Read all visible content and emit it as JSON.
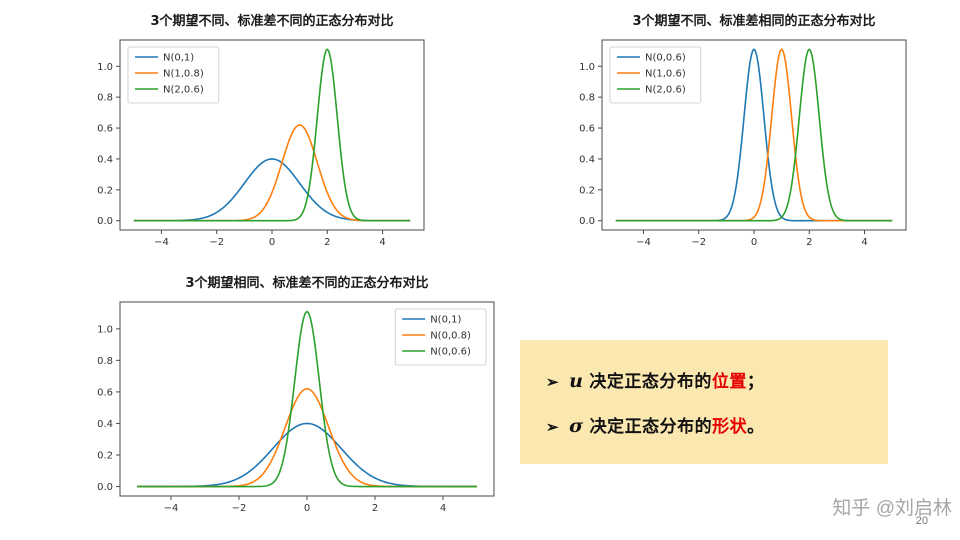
{
  "chart_data": [
    {
      "type": "line",
      "title": "3个期望不同、标准差不同的正态分布对比",
      "xlim": [
        -5.5,
        5.5
      ],
      "ylim": [
        -0.06,
        1.17
      ],
      "curve_range": [
        -5,
        5
      ],
      "grid": false,
      "x_ticks": [
        -4,
        -2,
        0,
        2,
        4
      ],
      "x_tick_labels": [
        "−4",
        "−2",
        "0",
        "2",
        "4"
      ],
      "y_ticks": [
        0,
        0.2,
        0.4,
        0.6,
        0.8,
        1.0
      ],
      "y_tick_labels": [
        "0.0",
        "0.2",
        "0.4",
        "0.6",
        "0.8",
        "1.0"
      ],
      "legend_position": "upper-left",
      "series": [
        {
          "name": "N(0,1)",
          "color": "#1f77b4",
          "mu": 0,
          "sigma": 1.0,
          "peak": 0.4
        },
        {
          "name": "N(1,0.8)",
          "color": "#ff7f0e",
          "mu": 1,
          "sigma": 0.64,
          "peak": 0.62
        },
        {
          "name": "N(2,0.6)",
          "color": "#2ca02c",
          "mu": 2,
          "sigma": 0.36,
          "peak": 1.11
        }
      ]
    },
    {
      "type": "line",
      "title": "3个期望不同、标准差相同的正态分布对比",
      "xlim": [
        -5.5,
        5.5
      ],
      "ylim": [
        -0.06,
        1.17
      ],
      "curve_range": [
        -5,
        5
      ],
      "grid": false,
      "x_ticks": [
        -4,
        -2,
        0,
        2,
        4
      ],
      "x_tick_labels": [
        "−4",
        "−2",
        "0",
        "2",
        "4"
      ],
      "y_ticks": [
        0,
        0.2,
        0.4,
        0.6,
        0.8,
        1.0
      ],
      "y_tick_labels": [
        "0.0",
        "0.2",
        "0.4",
        "0.6",
        "0.8",
        "1.0"
      ],
      "legend_position": "upper-left",
      "series": [
        {
          "name": "N(0,0.6)",
          "color": "#1f77b4",
          "mu": 0,
          "sigma": 0.36,
          "peak": 1.11
        },
        {
          "name": "N(1,0.6)",
          "color": "#ff7f0e",
          "mu": 1,
          "sigma": 0.36,
          "peak": 1.11
        },
        {
          "name": "N(2,0.6)",
          "color": "#2ca02c",
          "mu": 2,
          "sigma": 0.36,
          "peak": 1.11
        }
      ]
    },
    {
      "type": "line",
      "title": "3个期望相同、标准差不同的正态分布对比",
      "xlim": [
        -5.5,
        5.5
      ],
      "ylim": [
        -0.06,
        1.17
      ],
      "curve_range": [
        -5,
        5
      ],
      "grid": false,
      "x_ticks": [
        -4,
        -2,
        0,
        2,
        4
      ],
      "x_tick_labels": [
        "−4",
        "−2",
        "0",
        "2",
        "4"
      ],
      "y_ticks": [
        0,
        0.2,
        0.4,
        0.6,
        0.8,
        1.0
      ],
      "y_tick_labels": [
        "0.0",
        "0.2",
        "0.4",
        "0.6",
        "0.8",
        "1.0"
      ],
      "legend_position": "upper-right",
      "series": [
        {
          "name": "N(0,1)",
          "color": "#1f77b4",
          "mu": 0,
          "sigma": 1.0,
          "peak": 0.4
        },
        {
          "name": "N(0,0.8)",
          "color": "#ff7f0e",
          "mu": 0,
          "sigma": 0.64,
          "peak": 0.62
        },
        {
          "name": "N(0,0.6)",
          "color": "#2ca02c",
          "mu": 0,
          "sigma": 0.36,
          "peak": 1.11
        }
      ]
    }
  ],
  "note": {
    "bg_color": "#fbe7b0",
    "highlight_color": "#e60000",
    "bullet_glyph": "➢",
    "bullets": [
      {
        "symbol": "u",
        "text": "决定正态分布的",
        "highlight": "位置",
        "suffix": "；"
      },
      {
        "symbol": "σ",
        "text": "决定正态分布的",
        "highlight": "形状",
        "suffix": "。"
      }
    ]
  },
  "footer": {
    "watermark": "知乎 @刘启林",
    "page_number": "20"
  }
}
